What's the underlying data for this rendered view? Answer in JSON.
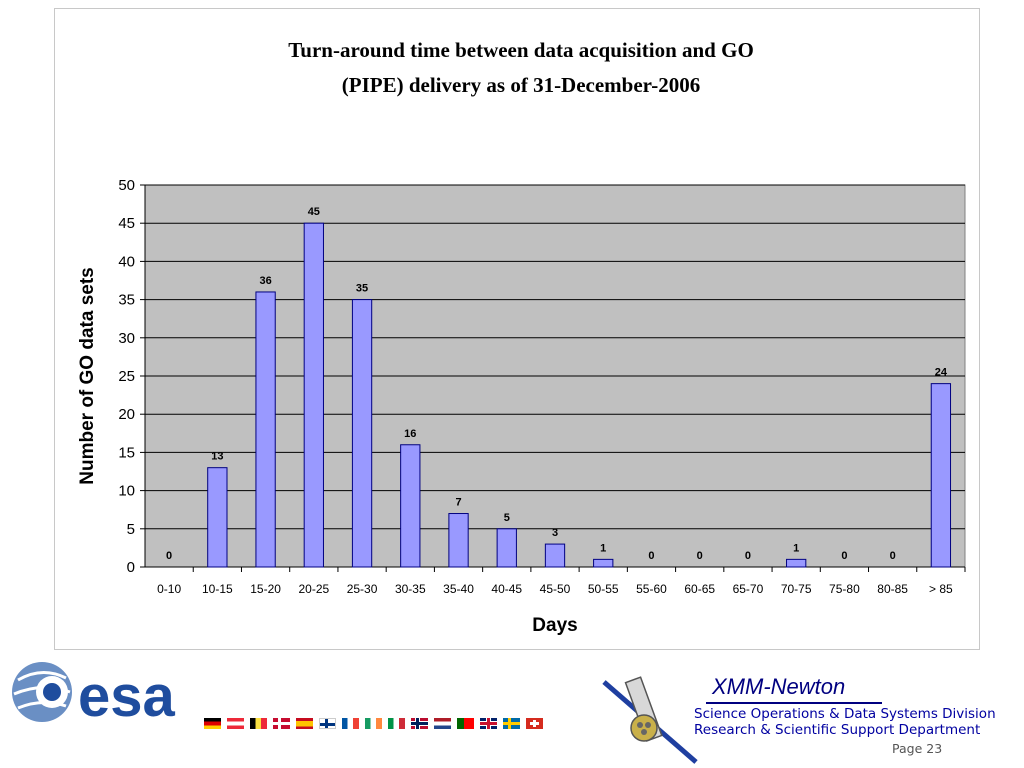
{
  "chart_data": {
    "type": "bar",
    "title_lines": [
      "Turn-around time between data acquisition and GO",
      "(PIPE) delivery as of 31-December-2006"
    ],
    "categories": [
      "0-10",
      "10-15",
      "15-20",
      "20-25",
      "25-30",
      "30-35",
      "35-40",
      "40-45",
      "45-50",
      "50-55",
      "55-60",
      "60-65",
      "65-70",
      "70-75",
      "75-80",
      "80-85",
      "> 85"
    ],
    "values": [
      0,
      13,
      36,
      45,
      35,
      16,
      7,
      5,
      3,
      1,
      0,
      0,
      0,
      1,
      0,
      0,
      24
    ],
    "xlabel": "Days",
    "ylabel": "Number of GO data sets",
    "ylim": [
      0,
      50
    ],
    "yticks": [
      0,
      5,
      10,
      15,
      20,
      25,
      30,
      35,
      40,
      45,
      50
    ],
    "grid": true,
    "data_labels": true,
    "colors": {
      "bar_fill": "#9999ff",
      "bar_stroke": "#000080",
      "plot_bg": "#c0c0c0",
      "grid": "#000000"
    }
  },
  "footer": {
    "logo_text": "esa",
    "flags": [
      "germany",
      "austria",
      "belgium",
      "denmark",
      "spain",
      "finland",
      "france",
      "ireland",
      "italy",
      "norway",
      "netherlands",
      "portugal",
      "united-kingdom",
      "sweden",
      "switzerland"
    ],
    "mission": "XMM-Newton",
    "dept_line_1": "Science Operations & Data Systems Division",
    "dept_line_2": "Research & Scientific Support Department",
    "page": "Page 23"
  }
}
